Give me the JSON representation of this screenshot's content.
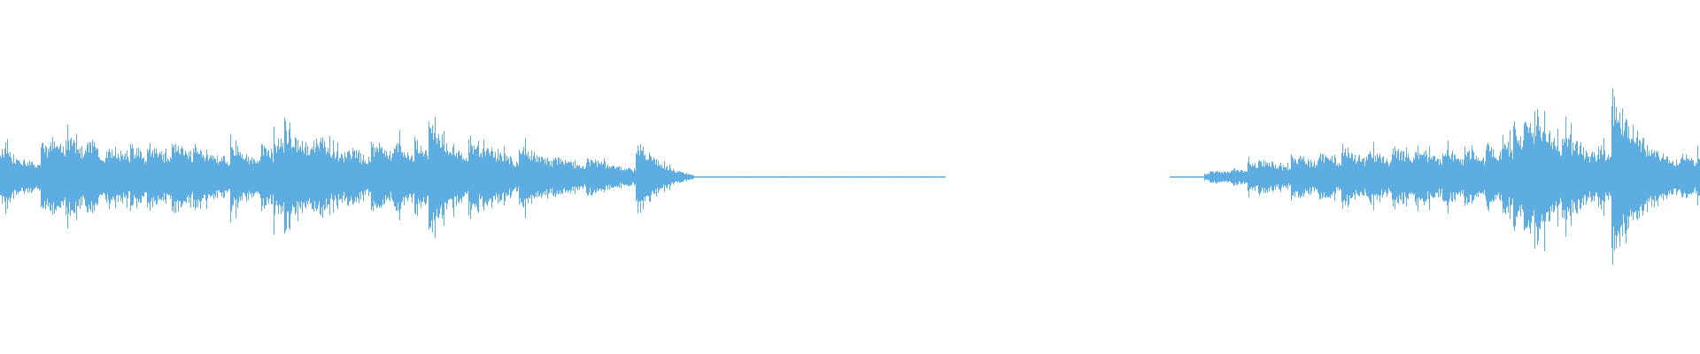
{
  "waveform": {
    "color": "#5dade2",
    "background": "#ffffff"
  }
}
